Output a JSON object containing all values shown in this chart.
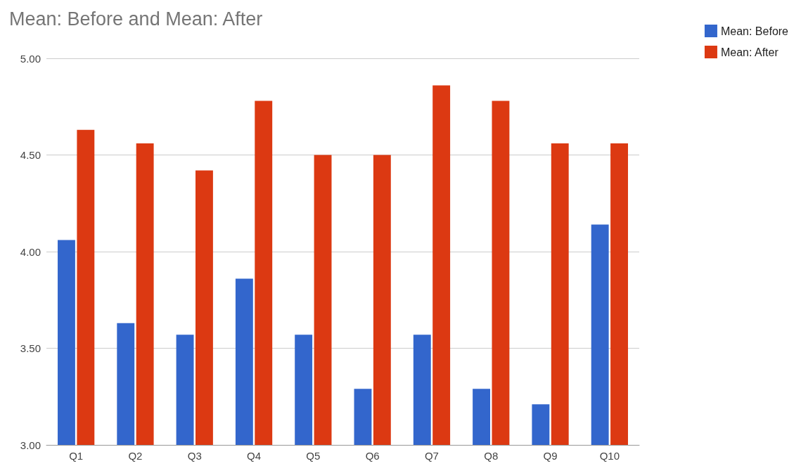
{
  "chart_data": {
    "type": "bar",
    "title": "Mean: Before and Mean: After",
    "categories": [
      "Q1",
      "Q2",
      "Q3",
      "Q4",
      "Q5",
      "Q6",
      "Q7",
      "Q8",
      "Q9",
      "Q10"
    ],
    "series": [
      {
        "name": "Mean: Before",
        "color": "#3366cc",
        "values": [
          4.06,
          3.63,
          3.57,
          3.86,
          3.57,
          3.29,
          3.57,
          3.29,
          3.21,
          4.14
        ]
      },
      {
        "name": "Mean: After",
        "color": "#dc3912",
        "values": [
          4.63,
          4.56,
          4.42,
          4.78,
          4.5,
          4.5,
          4.86,
          4.78,
          4.56,
          4.56
        ]
      }
    ],
    "ylim": [
      3,
      5
    ],
    "yticks": [
      {
        "value": 3,
        "label": "3.00"
      },
      {
        "value": 3.5,
        "label": "3.50"
      },
      {
        "value": 4,
        "label": "4.00"
      },
      {
        "value": 4.5,
        "label": "4.50"
      },
      {
        "value": 5,
        "label": "5.00"
      }
    ],
    "grid": "y",
    "legend": "top right"
  }
}
